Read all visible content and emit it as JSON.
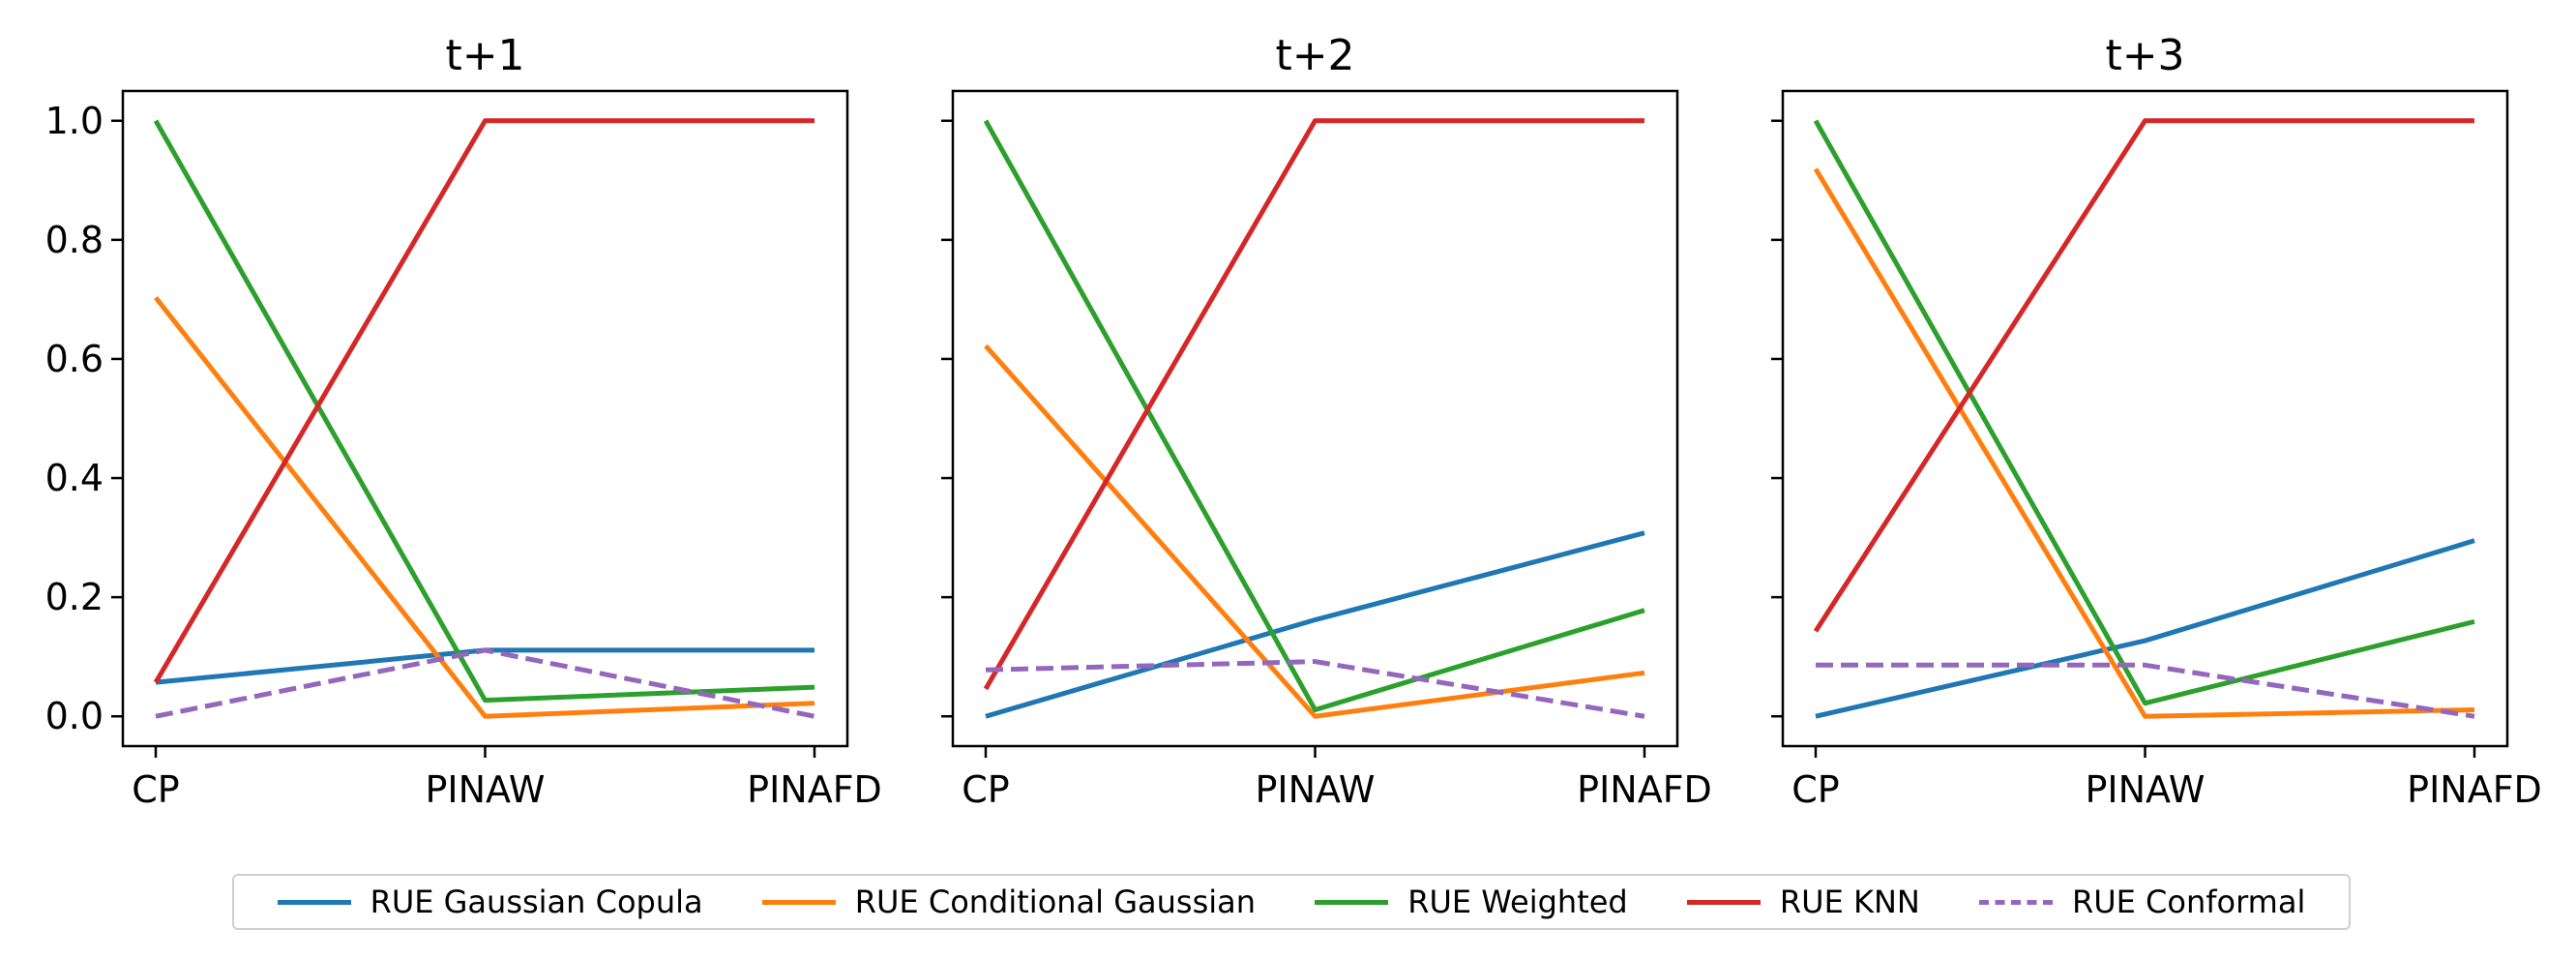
{
  "chart_data": [
    {
      "type": "line",
      "title": "t+1",
      "categories": [
        "CP",
        "PINAW",
        "PINAFD"
      ],
      "ylim": [
        -0.05,
        1.05
      ],
      "yticks": [
        "0.0",
        "0.2",
        "0.4",
        "0.6",
        "0.8",
        "1.0"
      ],
      "show_ytick_labels": true,
      "series": [
        {
          "name": "RUE Gaussian Copula",
          "values": [
            0.057,
            0.111,
            0.111
          ]
        },
        {
          "name": "RUE Conditional Gaussian",
          "values": [
            0.703,
            0.0,
            0.022
          ]
        },
        {
          "name": "RUE Weighted",
          "values": [
            1.0,
            0.027,
            0.049
          ]
        },
        {
          "name": "RUE KNN",
          "values": [
            0.057,
            1.0,
            1.0
          ]
        },
        {
          "name": "RUE Conformal",
          "values": [
            0.0,
            0.111,
            0.0
          ]
        }
      ]
    },
    {
      "type": "line",
      "title": "t+2",
      "categories": [
        "CP",
        "PINAW",
        "PINAFD"
      ],
      "ylim": [
        -0.05,
        1.05
      ],
      "yticks": [
        "0.0",
        "0.2",
        "0.4",
        "0.6",
        "0.8",
        "1.0"
      ],
      "show_ytick_labels": false,
      "series": [
        {
          "name": "RUE Gaussian Copula",
          "values": [
            0.0,
            0.162,
            0.308
          ]
        },
        {
          "name": "RUE Conditional Gaussian",
          "values": [
            0.622,
            0.0,
            0.073
          ]
        },
        {
          "name": "RUE Weighted",
          "values": [
            1.0,
            0.011,
            0.178
          ]
        },
        {
          "name": "RUE KNN",
          "values": [
            0.046,
            1.0,
            1.0
          ]
        },
        {
          "name": "RUE Conformal",
          "values": [
            0.078,
            0.092,
            0.0
          ]
        }
      ]
    },
    {
      "type": "line",
      "title": "t+3",
      "categories": [
        "CP",
        "PINAW",
        "PINAFD"
      ],
      "ylim": [
        -0.05,
        1.05
      ],
      "yticks": [
        "0.0",
        "0.2",
        "0.4",
        "0.6",
        "0.8",
        "1.0"
      ],
      "show_ytick_labels": false,
      "series": [
        {
          "name": "RUE Gaussian Copula",
          "values": [
            0.0,
            0.127,
            0.295
          ]
        },
        {
          "name": "RUE Conditional Gaussian",
          "values": [
            0.919,
            0.0,
            0.011
          ]
        },
        {
          "name": "RUE Weighted",
          "values": [
            1.0,
            0.022,
            0.159
          ]
        },
        {
          "name": "RUE KNN",
          "values": [
            0.143,
            1.0,
            1.0
          ]
        },
        {
          "name": "RUE Conformal",
          "values": [
            0.086,
            0.086,
            0.0
          ]
        }
      ]
    }
  ],
  "legend": {
    "placement": "bottom-center",
    "entries": [
      {
        "label": "RUE Gaussian Copula",
        "color": "#1f77b4",
        "style": "solid"
      },
      {
        "label": "RUE Conditional Gaussian",
        "color": "#ff7f0e",
        "style": "solid"
      },
      {
        "label": "RUE Weighted",
        "color": "#2ca02c",
        "style": "solid"
      },
      {
        "label": "RUE KNN",
        "color": "#d62728",
        "style": "solid"
      },
      {
        "label": "RUE Conformal",
        "color": "#9467bd",
        "style": "dashed"
      }
    ]
  }
}
